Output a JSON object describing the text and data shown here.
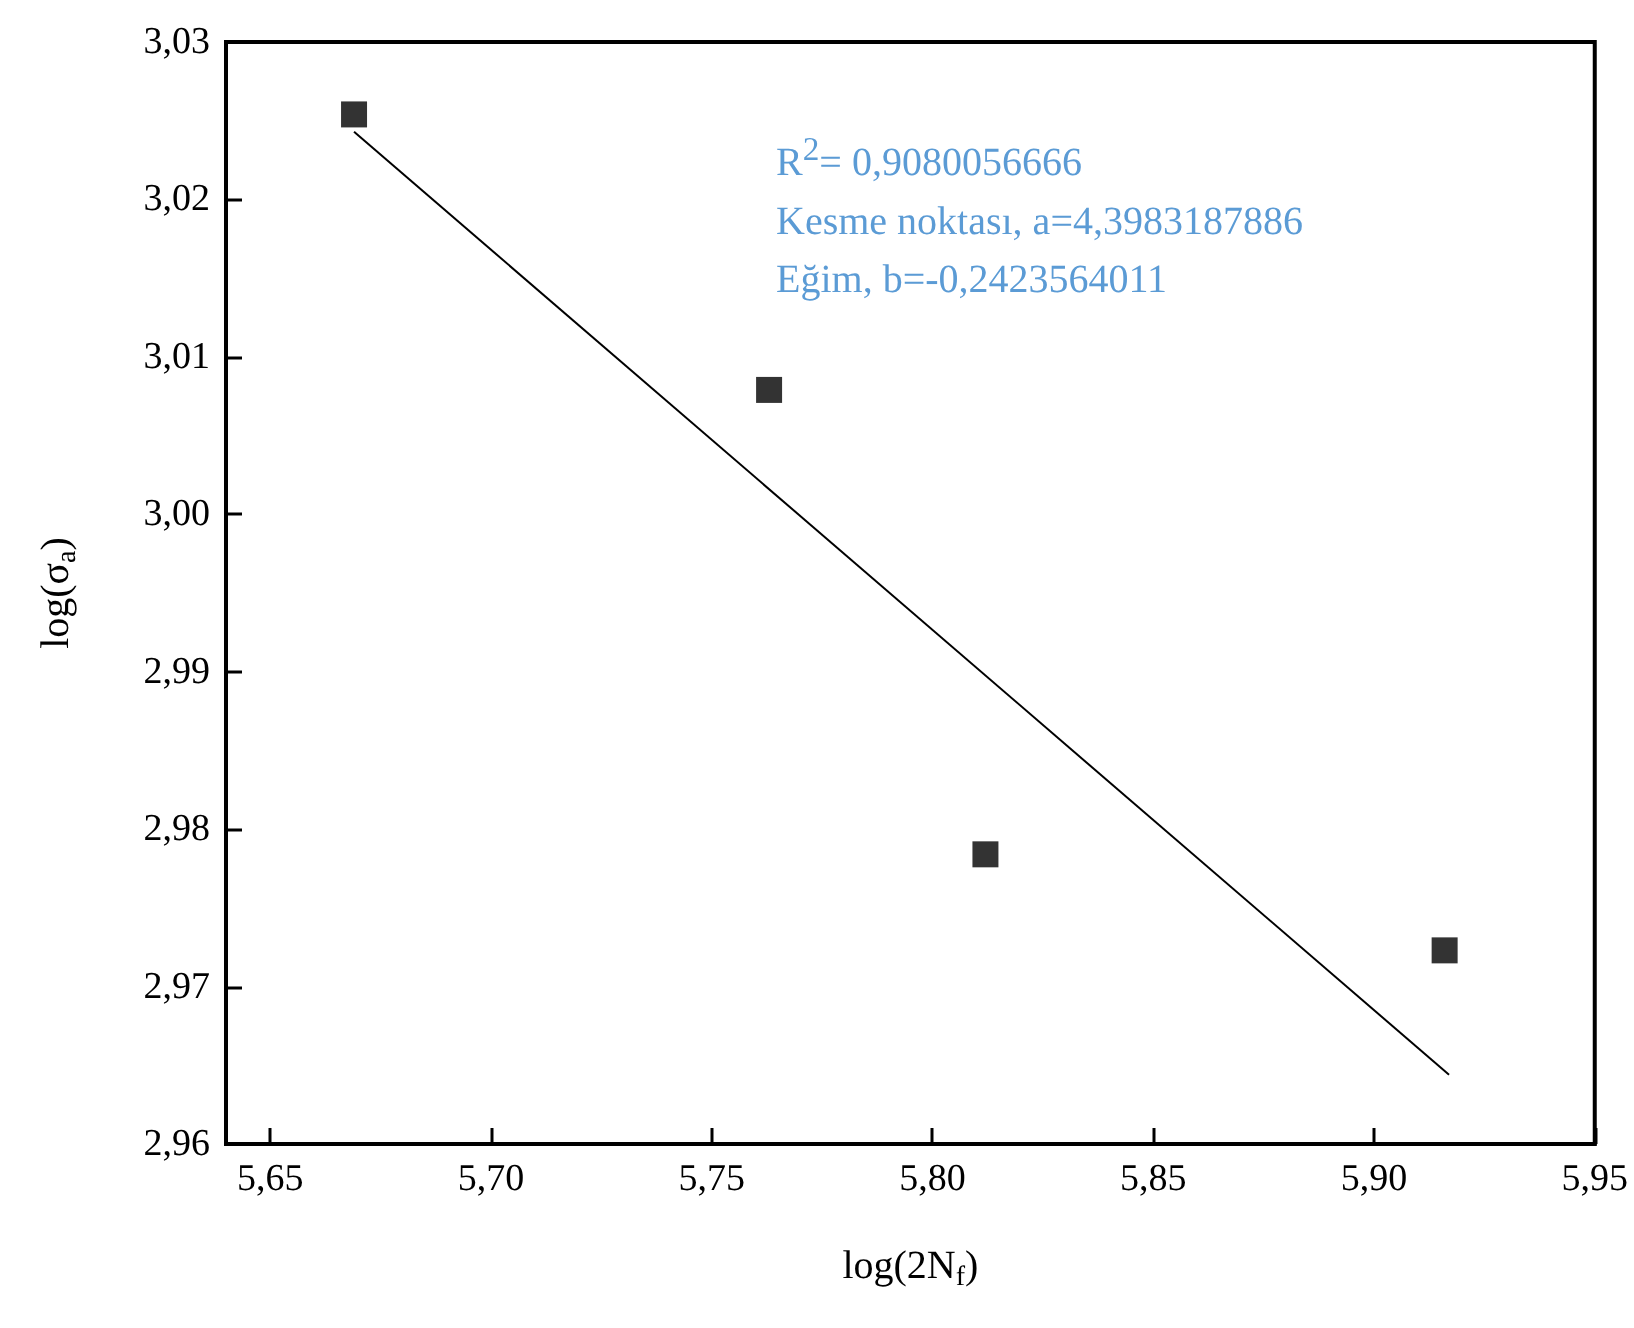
{
  "chart_data": {
    "type": "scatter",
    "xlabel": "log(2N$_{f}$)",
    "ylabel": "log(σ$_{a}$)",
    "annotations": [
      "R$^{2}$= 0,9080056666",
      "Kesme noktası, a=4,3983187886",
      "Eğim, b=-0,2423564011"
    ],
    "x": [
      5.669,
      5.763,
      5.812,
      5.916
    ],
    "series": [
      {
        "color": "#000000",
        "marker": "square",
        "values": [
          3.0254,
          3.0079,
          2.9784,
          2.9723
        ]
      },
      {
        "type": "line",
        "color": "#000000",
        "marker": "none",
        "line_style": "solid",
        "x": [
          5.669,
          5.917
        ],
        "values": [
          3.0243,
          2.9644
        ]
      }
    ],
    "xlim": [
      5.64,
      5.95
    ],
    "ylim": [
      2.96,
      3.03
    ],
    "xticks": [
      {
        "value": 5.65,
        "label": "5,65"
      },
      {
        "value": 5.7,
        "label": "5,70"
      },
      {
        "value": 5.75,
        "label": "5,75"
      },
      {
        "value": 5.8,
        "label": "5,80"
      },
      {
        "value": 5.85,
        "label": "5,85"
      },
      {
        "value": 5.9,
        "label": "5,90"
      },
      {
        "value": 5.95,
        "label": "5,95"
      }
    ],
    "yticks": [
      {
        "value": 2.96,
        "label": "2,96"
      },
      {
        "value": 2.97,
        "label": "2,97"
      },
      {
        "value": 2.98,
        "label": "2,98"
      },
      {
        "value": 2.99,
        "label": "2,99"
      },
      {
        "value": 3.0,
        "label": "3,00"
      },
      {
        "value": 3.01,
        "label": "3,01"
      },
      {
        "value": 3.02,
        "label": "3,02"
      },
      {
        "value": 3.03,
        "label": "3,03"
      }
    ],
    "grid": false
  }
}
